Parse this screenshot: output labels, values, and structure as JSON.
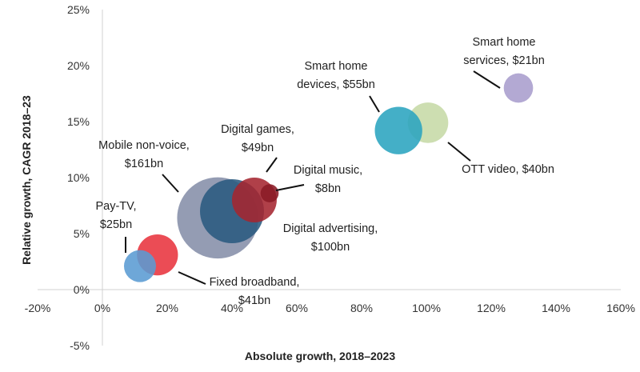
{
  "chart_data": {
    "type": "scatter",
    "subtype": "bubble",
    "title": "",
    "xlabel": "Absolute growth, 2018–2023",
    "ylabel": "Relative growth, CAGR 2018–23",
    "xlim": [
      -20,
      160
    ],
    "ylim": [
      -5,
      25
    ],
    "x_ticks": [
      "-20%",
      "0%",
      "20%",
      "40%",
      "60%",
      "80%",
      "100%",
      "120%",
      "140%",
      "160%"
    ],
    "x_tick_values": [
      -20,
      0,
      20,
      40,
      60,
      80,
      100,
      120,
      140,
      160
    ],
    "y_ticks": [
      "-5%",
      "0%",
      "5%",
      "10%",
      "15%",
      "20%",
      "25%"
    ],
    "y_tick_values": [
      -5,
      0,
      5,
      10,
      15,
      20,
      25
    ],
    "grid": false,
    "series": [
      {
        "name": "Pay-TV",
        "label": [
          "Pay-TV,",
          "$25bn"
        ],
        "x": 11.6,
        "y": 2.1,
        "size_bn": 25,
        "color": "#5a9bd3"
      },
      {
        "name": "Fixed broadband",
        "label": [
          "Fixed broadband,",
          "$41bn"
        ],
        "x": 17,
        "y": 3.1,
        "size_bn": 41,
        "color": "#e8333e"
      },
      {
        "name": "Mobile non-voice",
        "label": [
          "Mobile non-voice,",
          "$161bn"
        ],
        "x": 35.6,
        "y": 6.4,
        "size_bn": 161,
        "color": "#858ea8"
      },
      {
        "name": "Digital advertising",
        "label": [
          "Digital advertising,",
          "$100bn"
        ],
        "x": 40,
        "y": 7.0,
        "size_bn": 100,
        "color": "#2a5a7f"
      },
      {
        "name": "Digital games",
        "label": [
          "Digital  games,",
          "$49bn"
        ],
        "x": 46.9,
        "y": 8.0,
        "size_bn": 49,
        "color": "#a52630"
      },
      {
        "name": "Digital music",
        "label": [
          "Digital music,",
          "$8bn"
        ],
        "x": 51.6,
        "y": 8.6,
        "size_bn": 8,
        "color": "#8a1a25"
      },
      {
        "name": "Smart home devices",
        "label": [
          "Smart home",
          "devices, $55bn"
        ],
        "x": 91.4,
        "y": 14.2,
        "size_bn": 55,
        "color": "#2aa4bf"
      },
      {
        "name": "OTT video",
        "label": [
          "OTT video, $40bn"
        ],
        "x": 100.5,
        "y": 14.9,
        "size_bn": 40,
        "color": "#c6daa6"
      },
      {
        "name": "Smart home services",
        "label": [
          "Smart home",
          "services, $21bn"
        ],
        "x": 128.4,
        "y": 18.0,
        "size_bn": 21,
        "color": "#a89dcd"
      }
    ]
  }
}
